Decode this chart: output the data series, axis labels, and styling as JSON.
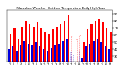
{
  "title": "Milwaukee Weather  Outdoor Temperature Daily High/Low",
  "high_values": [
    62,
    70,
    55,
    72,
    80,
    76,
    72,
    78,
    70,
    65,
    62,
    68,
    72,
    76,
    80,
    88,
    58,
    54,
    60,
    50,
    68,
    76,
    80,
    83,
    78,
    70,
    65
  ],
  "low_values": [
    40,
    44,
    38,
    46,
    52,
    48,
    46,
    50,
    44,
    40,
    38,
    42,
    46,
    48,
    52,
    55,
    36,
    32,
    38,
    28,
    44,
    48,
    52,
    55,
    50,
    44,
    40
  ],
  "high_color": "#ff0000",
  "low_color": "#0000dd",
  "bg_color": "#ffffff",
  "yticks": [
    30,
    40,
    50,
    60,
    70,
    80,
    90
  ],
  "ymin": 22,
  "ymax": 96,
  "dotted_indices": [
    16,
    17,
    18
  ],
  "bar_width": 0.42,
  "title_fontsize": 3.2,
  "tick_fontsize": 2.4,
  "ytick_fontsize": 2.8
}
